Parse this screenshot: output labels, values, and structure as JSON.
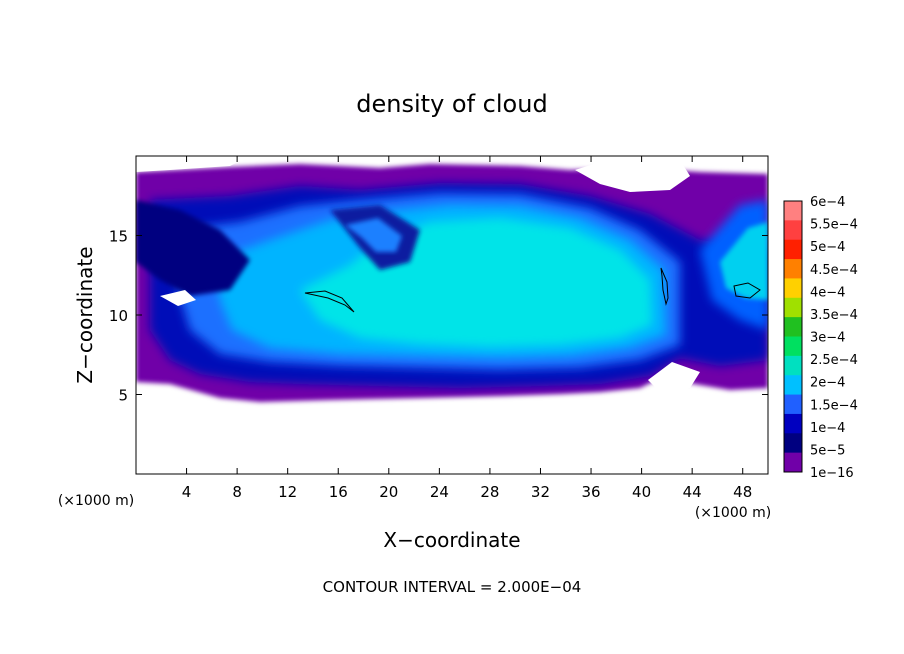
{
  "chart_data": {
    "type": "heatmap",
    "title": "density of cloud",
    "xlabel": "X−coordinate",
    "ylabel": "Z−coordinate",
    "x_unit_left": "(×1000 m)",
    "x_unit_right": "(×1000 m)",
    "xlim": [
      0,
      50
    ],
    "ylim": [
      0,
      20
    ],
    "x_ticks": [
      4,
      8,
      12,
      16,
      20,
      24,
      28,
      32,
      36,
      40,
      44,
      48
    ],
    "y_ticks": [
      5,
      10,
      15
    ],
    "footer": "CONTOUR INTERVAL = 2.000E−04",
    "colorbar": {
      "labels": [
        "6e−4",
        "5.5e−4",
        "5e−4",
        "4.5e−4",
        "4e−4",
        "3.5e−4",
        "3e−4",
        "2.5e−4",
        "2e−4",
        "1.5e−4",
        "1e−4",
        "5e−5",
        "1e−16"
      ],
      "colors": [
        "#ff8080",
        "#ff4040",
        "#ff2000",
        "#ff8000",
        "#ffd000",
        "#a0e000",
        "#20c020",
        "#00e060",
        "#00e0c0",
        "#00c0ff",
        "#2060ff",
        "#0000c0",
        "#000080",
        "#7000a8"
      ]
    },
    "grid": false,
    "legend": "right"
  }
}
